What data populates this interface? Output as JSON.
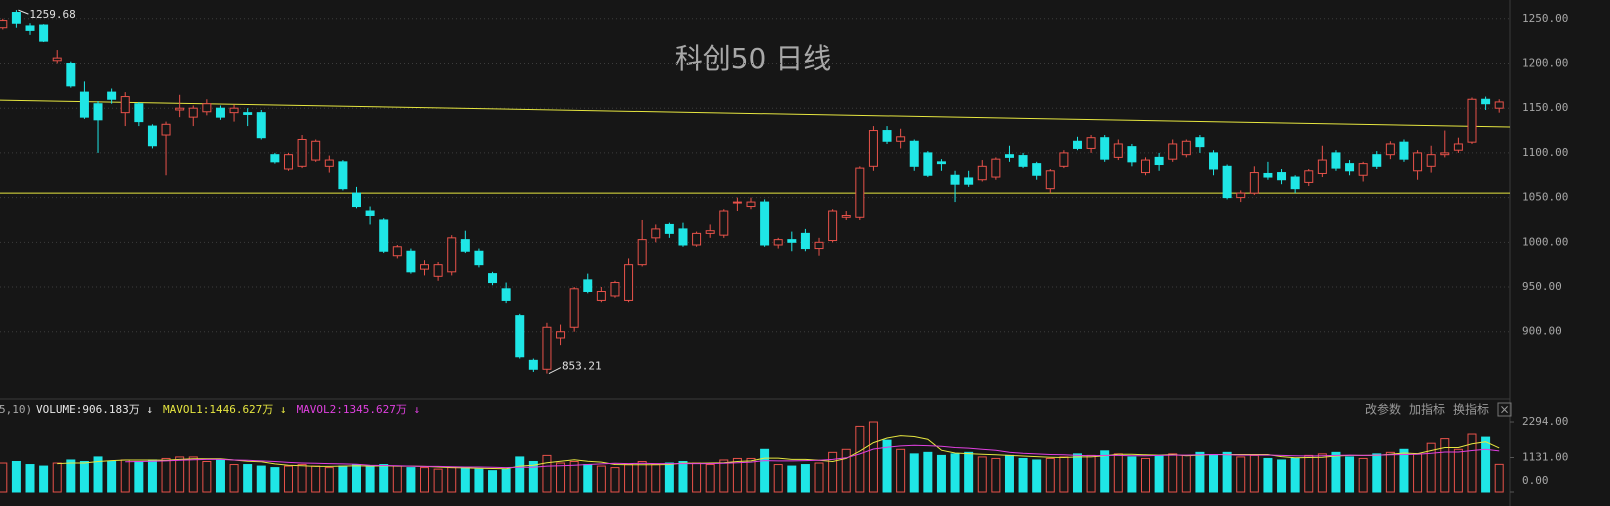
{
  "chart_data": [
    {
      "type": "candlestick",
      "title": "科创50 日线",
      "title_color": "#f0b020",
      "open": [
        1240,
        1257,
        1242,
        1243,
        1203,
        1200,
        1168,
        1155,
        1168,
        1145,
        1155,
        1130,
        1120,
        1148,
        1140,
        1146,
        1150,
        1145,
        1145,
        1145,
        1098,
        1082,
        1085,
        1092,
        1085,
        1090,
        1055,
        1035,
        1025,
        985,
        990,
        970,
        962,
        967,
        1003,
        990,
        965,
        948,
        918,
        868,
        858,
        893,
        905,
        958,
        935,
        940,
        935,
        975,
        1005,
        1020,
        1015,
        997,
        1010,
        1008,
        1045,
        1040,
        1045,
        997,
        1003,
        1010,
        993,
        1002,
        1028,
        1028,
        1085,
        1125,
        1113,
        1113,
        1100,
        1090,
        1075,
        1072,
        1070,
        1073,
        1098,
        1097,
        1088,
        1060,
        1085,
        1113,
        1105,
        1117,
        1095,
        1107,
        1078,
        1095,
        1093,
        1098,
        1117,
        1100,
        1085,
        1050,
        1055,
        1077,
        1078,
        1073,
        1067,
        1077,
        1100,
        1088,
        1075,
        1098,
        1098,
        1112,
        1080,
        1085,
        1098,
        1103,
        1112,
        1160,
        1150
      ],
      "high": [
        1250,
        1259.68,
        1245,
        1244,
        1215,
        1202,
        1180,
        1158,
        1172,
        1168,
        1157,
        1132,
        1135,
        1165,
        1153,
        1160,
        1153,
        1154,
        1150,
        1148,
        1100,
        1100,
        1120,
        1115,
        1097,
        1092,
        1062,
        1040,
        1027,
        997,
        993,
        980,
        978,
        1008,
        1013,
        993,
        967,
        955,
        920,
        870,
        910,
        908,
        950,
        965,
        950,
        957,
        982,
        1025,
        1020,
        1022,
        1022,
        1012,
        1020,
        1037,
        1050,
        1050,
        1048,
        1005,
        1012,
        1015,
        1005,
        1037,
        1035,
        1085,
        1130,
        1130,
        1127,
        1115,
        1102,
        1093,
        1080,
        1080,
        1092,
        1095,
        1108,
        1100,
        1090,
        1082,
        1103,
        1118,
        1120,
        1120,
        1115,
        1110,
        1095,
        1100,
        1115,
        1115,
        1120,
        1103,
        1087,
        1058,
        1085,
        1090,
        1082,
        1075,
        1082,
        1108,
        1103,
        1092,
        1090,
        1102,
        1113,
        1115,
        1103,
        1108,
        1125,
        1117,
        1162,
        1163,
        1160
      ],
      "low": [
        1238,
        1240,
        1232,
        1224,
        1200,
        1173,
        1138,
        1100,
        1155,
        1130,
        1130,
        1105,
        1075,
        1140,
        1130,
        1142,
        1137,
        1135,
        1130,
        1115,
        1088,
        1080,
        1083,
        1090,
        1078,
        1058,
        1038,
        1020,
        988,
        982,
        965,
        963,
        957,
        963,
        988,
        972,
        952,
        932,
        870,
        855,
        853.21,
        885,
        900,
        943,
        933,
        938,
        933,
        973,
        1000,
        1005,
        995,
        995,
        1005,
        1005,
        1035,
        1037,
        995,
        993,
        990,
        990,
        985,
        1000,
        1025,
        1025,
        1080,
        1110,
        1105,
        1080,
        1073,
        1080,
        1045,
        1062,
        1068,
        1070,
        1090,
        1083,
        1070,
        1055,
        1083,
        1103,
        1100,
        1090,
        1092,
        1085,
        1075,
        1080,
        1090,
        1095,
        1100,
        1075,
        1048,
        1045,
        1053,
        1070,
        1065,
        1055,
        1063,
        1073,
        1080,
        1075,
        1068,
        1082,
        1093,
        1090,
        1070,
        1078,
        1095,
        1100,
        1110,
        1148,
        1145
      ],
      "close": [
        1248,
        1245,
        1237,
        1225,
        1206,
        1175,
        1140,
        1137,
        1160,
        1163,
        1135,
        1108,
        1132,
        1150,
        1150,
        1155,
        1140,
        1150,
        1143,
        1117,
        1090,
        1098,
        1115,
        1113,
        1092,
        1060,
        1040,
        1030,
        990,
        995,
        967,
        975,
        975,
        1005,
        990,
        975,
        955,
        935,
        872,
        858,
        905,
        900,
        948,
        945,
        945,
        955,
        975,
        1003,
        1015,
        1010,
        997,
        1010,
        1013,
        1035,
        1045,
        1045,
        997,
        1003,
        1000,
        993,
        1000,
        1035,
        1030,
        1083,
        1125,
        1113,
        1118,
        1085,
        1075,
        1088,
        1065,
        1065,
        1085,
        1093,
        1095,
        1085,
        1075,
        1080,
        1100,
        1105,
        1117,
        1093,
        1110,
        1090,
        1092,
        1087,
        1110,
        1113,
        1107,
        1082,
        1050,
        1055,
        1078,
        1073,
        1070,
        1060,
        1080,
        1092,
        1083,
        1080,
        1088,
        1085,
        1110,
        1093,
        1100,
        1098,
        1100,
        1110,
        1160,
        1155,
        1157
      ],
      "up_color": "#e8524a",
      "down_color": "#1fe6e6",
      "ylim": [
        827,
        1271
      ],
      "yticks": [
        {
          "value": 900,
          "label": "900.00"
        },
        {
          "value": 950,
          "label": "950.00"
        },
        {
          "value": 1000,
          "label": "1000.00"
        },
        {
          "value": 1050,
          "label": "1050.00"
        },
        {
          "value": 1100,
          "label": "1100.00"
        },
        {
          "value": 1150,
          "label": "1150.00"
        },
        {
          "value": 1200,
          "label": "1200.00"
        },
        {
          "value": 1250,
          "label": "1250.00"
        }
      ],
      "grid": true,
      "trendlines": [
        {
          "start": 1159,
          "end": 1129,
          "color": "#e6e640"
        },
        {
          "start": 1055,
          "end": 1055,
          "color": "#e6e640"
        }
      ],
      "marked_high": 1,
      "marked_low": 40
    },
    {
      "type": "volume",
      "params": "5,10)",
      "series": [
        {
          "name": "VOLUME:906.183万 ↓",
          "color": "#e8e8e8",
          "values": [
            950,
            1000,
            900,
            850,
            950,
            1050,
            1000,
            1150,
            1000,
            1050,
            1000,
            1050,
            1100,
            1150,
            1150,
            1000,
            1050,
            900,
            900,
            850,
            800,
            850,
            900,
            850,
            800,
            850,
            900,
            850,
            900,
            850,
            800,
            800,
            750,
            800,
            800,
            750,
            700,
            750,
            1150,
            1000,
            1200,
            950,
            1000,
            900,
            850,
            800,
            900,
            1000,
            900,
            950,
            1000,
            950,
            900,
            1050,
            1100,
            1100,
            1400,
            900,
            850,
            900,
            950,
            1300,
            1400,
            2150,
            2294,
            1700,
            1400,
            1250,
            1300,
            1200,
            1250,
            1300,
            1150,
            1100,
            1200,
            1100,
            1050,
            1100,
            1150,
            1250,
            1200,
            1350,
            1250,
            1150,
            1100,
            1200,
            1250,
            1200,
            1300,
            1200,
            1300,
            1150,
            1200,
            1100,
            1050,
            1100,
            1200,
            1250,
            1300,
            1150,
            1100,
            1250,
            1300,
            1400,
            1250,
            1600,
            1750,
            1400,
            1900,
            1800,
            906.183
          ]
        },
        {
          "name": "MAVOL1:1446.627万 ↓",
          "color": "#e6e640",
          "values": [
            null,
            null,
            null,
            null,
            930,
            950,
            950,
            1000,
            1030,
            1050,
            1050,
            1050,
            1040,
            1070,
            1090,
            1090,
            1090,
            1050,
            1010,
            990,
            920,
            880,
            860,
            840,
            840,
            850,
            860,
            850,
            860,
            850,
            850,
            840,
            820,
            800,
            790,
            780,
            770,
            760,
            850,
            880,
            960,
            1010,
            1060,
            1010,
            980,
            900,
            890,
            890,
            890,
            900,
            950,
            940,
            950,
            960,
            1000,
            1020,
            1110,
            1110,
            1070,
            1070,
            1040,
            1000,
            1100,
            1340,
            1620,
            1770,
            1850,
            1820,
            1730,
            1370,
            1280,
            1260,
            1240,
            1220,
            1200,
            1180,
            1160,
            1140,
            1130,
            1150,
            1150,
            1190,
            1240,
            1240,
            1220,
            1210,
            1230,
            1190,
            1210,
            1230,
            1230,
            1230,
            1230,
            1230,
            1160,
            1120,
            1130,
            1140,
            1180,
            1200,
            1200,
            1200,
            1240,
            1280,
            1260,
            1360,
            1460,
            1460,
            1580,
            1650,
            1446.627
          ]
        },
        {
          "name": "MAVOL2:1345.627万 ↓",
          "color": "#e040e0",
          "values": [
            null,
            null,
            null,
            null,
            null,
            null,
            null,
            null,
            null,
            990,
            1000,
            1010,
            1020,
            1040,
            1060,
            1070,
            1070,
            1050,
            1040,
            1020,
            1000,
            970,
            950,
            940,
            930,
            920,
            910,
            880,
            870,
            860,
            850,
            840,
            840,
            830,
            820,
            820,
            810,
            800,
            810,
            810,
            850,
            860,
            880,
            900,
            920,
            940,
            930,
            940,
            930,
            930,
            930,
            930,
            930,
            940,
            960,
            980,
            1030,
            1020,
            1020,
            1030,
            1040,
            1070,
            1120,
            1250,
            1410,
            1470,
            1510,
            1530,
            1520,
            1500,
            1460,
            1440,
            1400,
            1370,
            1300,
            1270,
            1250,
            1230,
            1220,
            1200,
            1190,
            1200,
            1200,
            1190,
            1190,
            1200,
            1210,
            1210,
            1220,
            1230,
            1220,
            1210,
            1210,
            1210,
            1200,
            1190,
            1180,
            1190,
            1200,
            1210,
            1200,
            1210,
            1220,
            1230,
            1240,
            1270,
            1310,
            1310,
            1360,
            1400,
            1345.627
          ]
        }
      ],
      "ylim": [
        0,
        2524
      ],
      "yticks": [
        {
          "value": 0,
          "label": "0.00"
        },
        {
          "value": 1131,
          "label": "1131.00"
        },
        {
          "value": 2294,
          "label": "2294.00"
        }
      ]
    }
  ],
  "toolbar": [
    "改参数",
    "加指标",
    "换指标",
    "×"
  ]
}
